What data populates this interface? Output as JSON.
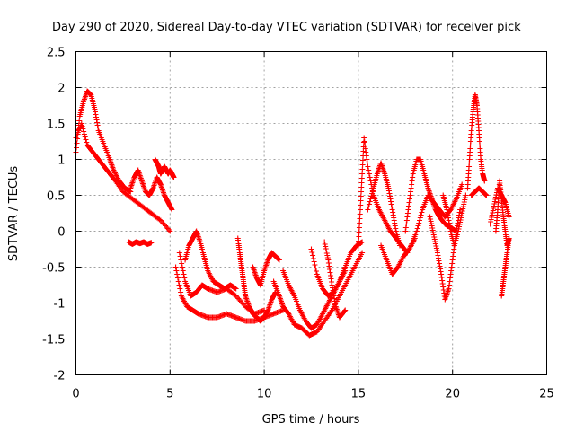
{
  "chart_data": {
    "type": "scatter",
    "title": "Day 290 of 2020, Sidereal Day-to-day VTEC variation (SDTVAR) for receiver pick",
    "xlabel": "GPS time / hours",
    "ylabel": "SDTVAR / TECUs",
    "xlim": [
      0,
      25
    ],
    "ylim": [
      -2,
      2.5
    ],
    "xticks": [
      0,
      5,
      10,
      15,
      20,
      25
    ],
    "yticks": [
      -2,
      -1.5,
      -1,
      -0.5,
      0,
      0.5,
      1,
      1.5,
      2,
      2.5
    ],
    "xtick_labels": [
      "0",
      "5",
      "10",
      "15",
      "20",
      "25"
    ],
    "ytick_labels": [
      "-2",
      "-1.5",
      "-1",
      "-0.5",
      "0",
      "0.5",
      "1",
      "1.5",
      "2",
      "2.5"
    ],
    "grid": true,
    "marker": "+",
    "color": "#ff0000",
    "series": [
      {
        "name": "s1",
        "x": [
          0.0,
          0.3,
          0.6,
          0.9,
          1.2,
          1.5,
          1.8,
          2.1,
          2.5,
          3.0,
          3.5,
          4.0,
          4.5,
          5.0
        ],
        "y": [
          1.3,
          1.5,
          1.2,
          1.1,
          1.0,
          0.9,
          0.8,
          0.7,
          0.55,
          0.45,
          0.35,
          0.25,
          0.15,
          0.0
        ]
      },
      {
        "name": "s2",
        "x": [
          0.0,
          0.2,
          0.4,
          0.6,
          0.8,
          1.0,
          1.2,
          1.5,
          1.8,
          2.0,
          2.3,
          2.6,
          2.9
        ],
        "y": [
          1.1,
          1.6,
          1.8,
          1.95,
          1.9,
          1.7,
          1.4,
          1.2,
          1.0,
          0.85,
          0.7,
          0.6,
          0.55
        ]
      },
      {
        "name": "s3",
        "x": [
          2.9,
          3.1,
          3.3,
          3.5,
          3.7,
          3.9,
          4.1,
          4.3,
          4.5,
          4.7,
          4.9,
          5.1
        ],
        "y": [
          0.6,
          0.75,
          0.85,
          0.7,
          0.55,
          0.5,
          0.6,
          0.75,
          0.65,
          0.5,
          0.4,
          0.3
        ]
      },
      {
        "name": "s4",
        "x": [
          4.2,
          4.3,
          4.4,
          4.5,
          4.6,
          4.7,
          4.8,
          4.9,
          5.0,
          5.1,
          5.2
        ],
        "y": [
          1.0,
          0.95,
          0.9,
          0.8,
          0.85,
          0.9,
          0.85,
          0.8,
          0.85,
          0.8,
          0.75
        ]
      },
      {
        "name": "s5",
        "x": [
          2.8,
          3.0,
          3.2,
          3.4,
          3.6,
          3.8,
          4.0
        ],
        "y": [
          -0.15,
          -0.18,
          -0.15,
          -0.17,
          -0.15,
          -0.18,
          -0.16
        ]
      },
      {
        "name": "s6",
        "x": [
          5.3,
          5.6,
          5.9,
          6.2,
          6.5,
          7.0,
          7.5,
          8.0,
          8.5,
          9.0,
          9.5,
          10.0,
          10.5,
          11.0
        ],
        "y": [
          -0.5,
          -0.9,
          -1.05,
          -1.1,
          -1.15,
          -1.2,
          -1.2,
          -1.15,
          -1.2,
          -1.25,
          -1.25,
          -1.2,
          -1.15,
          -1.1
        ]
      },
      {
        "name": "s7",
        "x": [
          5.5,
          5.8,
          6.1,
          6.4,
          6.7,
          7.0,
          7.5,
          8.0,
          8.5,
          9.0,
          9.5,
          10.0
        ],
        "y": [
          -0.3,
          -0.7,
          -0.9,
          -0.85,
          -0.75,
          -0.8,
          -0.85,
          -0.8,
          -0.9,
          -1.05,
          -1.15,
          -1.1
        ]
      },
      {
        "name": "s8",
        "x": [
          5.8,
          6.0,
          6.2,
          6.4,
          6.6,
          6.8,
          7.0,
          7.3,
          7.6,
          7.9,
          8.2,
          8.5
        ],
        "y": [
          -0.4,
          -0.2,
          -0.1,
          0.0,
          -0.15,
          -0.35,
          -0.55,
          -0.7,
          -0.75,
          -0.8,
          -0.75,
          -0.8
        ]
      },
      {
        "name": "s9",
        "x": [
          8.6,
          8.7,
          8.8,
          8.9,
          9.0,
          9.2,
          9.4,
          9.6,
          9.8,
          10.0,
          10.2,
          10.4,
          10.6
        ],
        "y": [
          -0.1,
          -0.3,
          -0.5,
          -0.7,
          -0.9,
          -1.05,
          -1.15,
          -1.2,
          -1.25,
          -1.2,
          -1.1,
          -0.95,
          -0.85
        ]
      },
      {
        "name": "s10",
        "x": [
          9.4,
          9.6,
          9.8,
          10.0,
          10.2,
          10.4,
          10.6,
          10.8
        ],
        "y": [
          -0.5,
          -0.65,
          -0.75,
          -0.55,
          -0.4,
          -0.3,
          -0.35,
          -0.4
        ]
      },
      {
        "name": "s11",
        "x": [
          10.5,
          10.8,
          11.0,
          11.3,
          11.6,
          12.0,
          12.4,
          12.8,
          13.2,
          13.6,
          14.0,
          14.4,
          14.8,
          15.2
        ],
        "y": [
          -0.7,
          -0.9,
          -1.05,
          -1.15,
          -1.3,
          -1.35,
          -1.45,
          -1.4,
          -1.25,
          -1.1,
          -0.9,
          -0.7,
          -0.5,
          -0.3
        ]
      },
      {
        "name": "s12",
        "x": [
          11.0,
          11.3,
          11.6,
          11.9,
          12.2,
          12.5,
          12.8,
          13.1,
          13.4,
          13.7,
          14.0,
          14.3
        ],
        "y": [
          -0.55,
          -0.75,
          -0.9,
          -1.1,
          -1.25,
          -1.35,
          -1.3,
          -1.15,
          -1.0,
          -0.85,
          -0.7,
          -0.55
        ]
      },
      {
        "name": "s13",
        "x": [
          12.5,
          12.8,
          13.1,
          13.4,
          13.7,
          14.0,
          14.3,
          14.6,
          14.9,
          15.2
        ],
        "y": [
          -0.25,
          -0.6,
          -0.8,
          -0.9,
          -0.85,
          -0.7,
          -0.5,
          -0.3,
          -0.2,
          -0.15
        ]
      },
      {
        "name": "s14",
        "x": [
          13.2,
          13.4,
          13.6,
          13.8,
          14.0,
          14.3
        ],
        "y": [
          -0.15,
          -0.4,
          -0.75,
          -1.05,
          -1.2,
          -1.1
        ]
      },
      {
        "name": "s15",
        "x": [
          15.0,
          15.1,
          15.2,
          15.3,
          15.5,
          15.8,
          16.1,
          16.4,
          16.7,
          17.0,
          17.3,
          17.6
        ],
        "y": [
          -0.2,
          0.3,
          0.8,
          1.3,
          0.9,
          0.5,
          0.3,
          0.15,
          0.0,
          -0.1,
          -0.2,
          -0.3
        ]
      },
      {
        "name": "s16",
        "x": [
          15.5,
          15.8,
          16.0,
          16.2,
          16.4,
          16.6,
          16.8,
          17.0,
          17.2
        ],
        "y": [
          0.3,
          0.6,
          0.8,
          0.95,
          0.8,
          0.6,
          0.3,
          0.0,
          -0.2
        ]
      },
      {
        "name": "s17",
        "x": [
          16.2,
          16.5,
          16.8,
          17.1,
          17.4,
          17.7,
          18.0
        ],
        "y": [
          -0.2,
          -0.4,
          -0.6,
          -0.5,
          -0.35,
          -0.25,
          -0.1
        ]
      },
      {
        "name": "s18",
        "x": [
          17.5,
          17.7,
          17.9,
          18.1,
          18.3,
          18.5,
          18.7,
          18.9,
          19.1,
          19.3,
          19.6,
          19.9,
          20.2
        ],
        "y": [
          0.0,
          0.4,
          0.8,
          1.0,
          1.0,
          0.8,
          0.6,
          0.45,
          0.3,
          0.2,
          0.1,
          0.05,
          0.0
        ]
      },
      {
        "name": "s19",
        "x": [
          17.8,
          18.1,
          18.4,
          18.7,
          19.0,
          19.3,
          19.6,
          19.9,
          20.2,
          20.5
        ],
        "y": [
          -0.2,
          0.0,
          0.3,
          0.5,
          0.4,
          0.3,
          0.2,
          0.3,
          0.45,
          0.65
        ]
      },
      {
        "name": "s20",
        "x": [
          18.8,
          19.0,
          19.2,
          19.4,
          19.6,
          19.8,
          20.0,
          20.2,
          20.4
        ],
        "y": [
          0.2,
          -0.05,
          -0.3,
          -0.6,
          -0.95,
          -0.8,
          -0.4,
          0.0,
          0.3
        ]
      },
      {
        "name": "s21",
        "x": [
          19.5,
          19.7,
          19.9,
          20.1,
          20.3,
          20.5,
          20.7
        ],
        "y": [
          0.5,
          0.3,
          0.0,
          -0.2,
          0.0,
          0.25,
          0.5
        ]
      },
      {
        "name": "s22",
        "x": [
          20.8,
          20.9,
          21.0,
          21.1,
          21.2,
          21.3,
          21.4,
          21.5,
          21.6,
          21.7
        ],
        "y": [
          0.6,
          1.0,
          1.4,
          1.7,
          1.9,
          1.75,
          1.4,
          1.0,
          0.8,
          0.7
        ]
      },
      {
        "name": "s23",
        "x": [
          21.0,
          21.2,
          21.4,
          21.6,
          21.8
        ],
        "y": [
          0.5,
          0.55,
          0.6,
          0.55,
          0.5
        ]
      },
      {
        "name": "s24",
        "x": [
          22.0,
          22.2,
          22.4,
          22.6,
          22.8,
          23.0
        ],
        "y": [
          0.1,
          0.35,
          0.6,
          0.5,
          0.4,
          0.2
        ]
      },
      {
        "name": "s25",
        "x": [
          22.3,
          22.4,
          22.5,
          22.6,
          22.7,
          22.8,
          22.9,
          23.0
        ],
        "y": [
          0.0,
          0.3,
          0.7,
          0.45,
          0.2,
          0.0,
          -0.2,
          -0.1
        ]
      },
      {
        "name": "s26",
        "x": [
          22.6,
          22.7,
          22.8,
          22.9,
          23.0
        ],
        "y": [
          -0.9,
          -0.7,
          -0.5,
          -0.3,
          -0.1
        ]
      }
    ]
  }
}
